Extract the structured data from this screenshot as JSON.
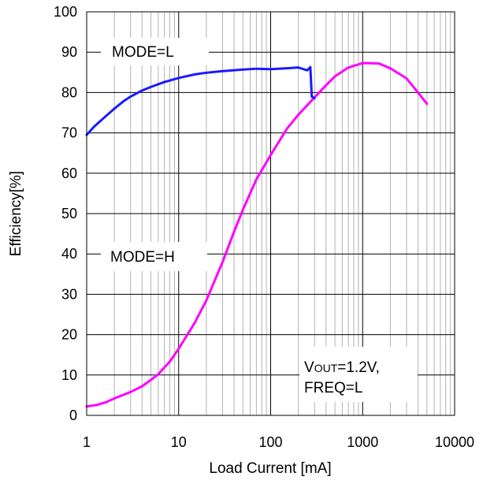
{
  "chart_data": {
    "type": "line",
    "x_scale": "log",
    "xlim": [
      1,
      10000
    ],
    "ylim": [
      0,
      100
    ],
    "grid": true,
    "xlabel": "Load Current [mA]",
    "ylabel": "Efficiency[%]",
    "x_tick_labels": [
      "1",
      "10",
      "100",
      "1000",
      "10000"
    ],
    "y_tick_labels": [
      "0",
      "10",
      "20",
      "30",
      "40",
      "50",
      "60",
      "70",
      "80",
      "90",
      "100"
    ],
    "series": [
      {
        "name": "MODE=L",
        "color": "#1a1aff",
        "points": [
          [
            1.0,
            69.5
          ],
          [
            1.2,
            71.5
          ],
          [
            1.5,
            73.5
          ],
          [
            2.0,
            76.0
          ],
          [
            2.5,
            77.8
          ],
          [
            3.0,
            79.0
          ],
          [
            4.0,
            80.5
          ],
          [
            5.0,
            81.4
          ],
          [
            7.0,
            82.6
          ],
          [
            10.0,
            83.6
          ],
          [
            15.0,
            84.5
          ],
          [
            20.0,
            84.9
          ],
          [
            30.0,
            85.3
          ],
          [
            50.0,
            85.7
          ],
          [
            70.0,
            85.9
          ],
          [
            100.0,
            85.8
          ],
          [
            150.0,
            86.0
          ],
          [
            200.0,
            86.2
          ],
          [
            250.0,
            85.5
          ],
          [
            270.0,
            86.3
          ],
          [
            280.0,
            79.0
          ],
          [
            300.0,
            78.6
          ]
        ]
      },
      {
        "name": "MODE=H",
        "color": "#ff00ff",
        "points": [
          [
            1.0,
            2.2
          ],
          [
            1.3,
            2.6
          ],
          [
            1.6,
            3.2
          ],
          [
            2.0,
            4.2
          ],
          [
            3.0,
            5.8
          ],
          [
            4.0,
            7.2
          ],
          [
            5.0,
            8.8
          ],
          [
            6.0,
            10.2
          ],
          [
            8.0,
            13.3
          ],
          [
            10.0,
            16.5
          ],
          [
            15.0,
            23.0
          ],
          [
            20.0,
            28.5
          ],
          [
            30.0,
            38.0
          ],
          [
            40.0,
            45.5
          ],
          [
            50.0,
            51.0
          ],
          [
            70.0,
            58.5
          ],
          [
            100.0,
            64.5
          ],
          [
            150.0,
            71.0
          ],
          [
            200.0,
            74.5
          ],
          [
            300.0,
            78.8
          ],
          [
            400.0,
            81.8
          ],
          [
            500.0,
            84.0
          ],
          [
            700.0,
            86.2
          ],
          [
            1000.0,
            87.3
          ],
          [
            1500.0,
            87.2
          ],
          [
            2000.0,
            86.0
          ],
          [
            3000.0,
            83.5
          ],
          [
            4000.0,
            80.0
          ],
          [
            5000.0,
            77.2
          ]
        ]
      }
    ],
    "annotations": [
      {
        "text": "MODE=L",
        "at": [
          1,
          90
        ]
      },
      {
        "text": "MODE=H",
        "at": [
          1,
          39
        ]
      },
      {
        "text_main": "V",
        "text_sub": "OUT",
        "text_tail": "=1.2V,",
        "text_line2": "FREQ=L"
      }
    ]
  }
}
